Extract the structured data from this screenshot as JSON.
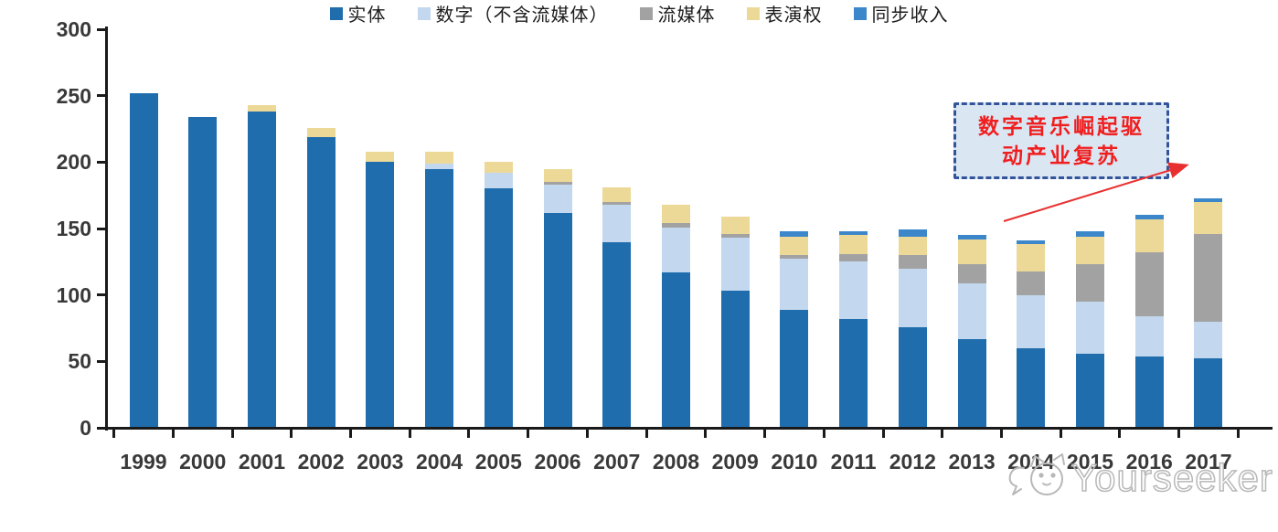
{
  "chart_data": {
    "type": "bar",
    "stacked": true,
    "title": "",
    "xlabel": "",
    "ylabel": "",
    "grid": false,
    "legend_position": "bottom-center",
    "ylim": [
      0,
      300
    ],
    "yticks": [
      0,
      50,
      100,
      150,
      200,
      250,
      300
    ],
    "categories": [
      "1999",
      "2000",
      "2001",
      "2002",
      "2003",
      "2004",
      "2005",
      "2006",
      "2007",
      "2008",
      "2009",
      "2010",
      "2011",
      "2012",
      "2013",
      "2014",
      "2015",
      "2016",
      "2017"
    ],
    "series": [
      {
        "key": "physical",
        "name": "实体",
        "color": "#1f6dac",
        "values": [
          252,
          234,
          238,
          219,
          200,
          195,
          180,
          162,
          140,
          117,
          103,
          89,
          82,
          76,
          67,
          60,
          56,
          54,
          52
        ]
      },
      {
        "key": "digital-ex-streaming",
        "name": "数字（不含流媒体）",
        "color": "#c3d8ee",
        "values": [
          0,
          0,
          0,
          0,
          0,
          4,
          12,
          21,
          28,
          34,
          40,
          38,
          43,
          44,
          42,
          40,
          39,
          30,
          28
        ]
      },
      {
        "key": "streaming",
        "name": "流媒体",
        "color": "#a2a2a2",
        "values": [
          0,
          0,
          0,
          0,
          0,
          0,
          0,
          2,
          2,
          3,
          3,
          3,
          6,
          10,
          14,
          18,
          28,
          48,
          66
        ]
      },
      {
        "key": "performance-rights",
        "name": "表演权",
        "color": "#ecd998",
        "values": [
          0,
          0,
          5,
          7,
          8,
          9,
          8,
          10,
          11,
          14,
          13,
          14,
          14,
          14,
          19,
          20,
          21,
          25,
          24
        ]
      },
      {
        "key": "sync-revenue",
        "name": "同步收入",
        "color": "#3c87c9",
        "values": [
          0,
          0,
          0,
          0,
          0,
          0,
          0,
          0,
          0,
          0,
          0,
          4,
          3,
          5,
          3,
          3,
          4,
          3,
          3
        ]
      }
    ]
  },
  "annotation": {
    "line1": "数字音乐崛起驱",
    "line2": "动产业复苏",
    "text_color": "#f01f1f",
    "box_fill": "#dbe6f3",
    "box_border_color": "#32549b",
    "arrow_color": "#e93030"
  },
  "watermark": {
    "text": "Yourseeker",
    "icon": "cat-logo",
    "color": "#b8b8b8"
  }
}
